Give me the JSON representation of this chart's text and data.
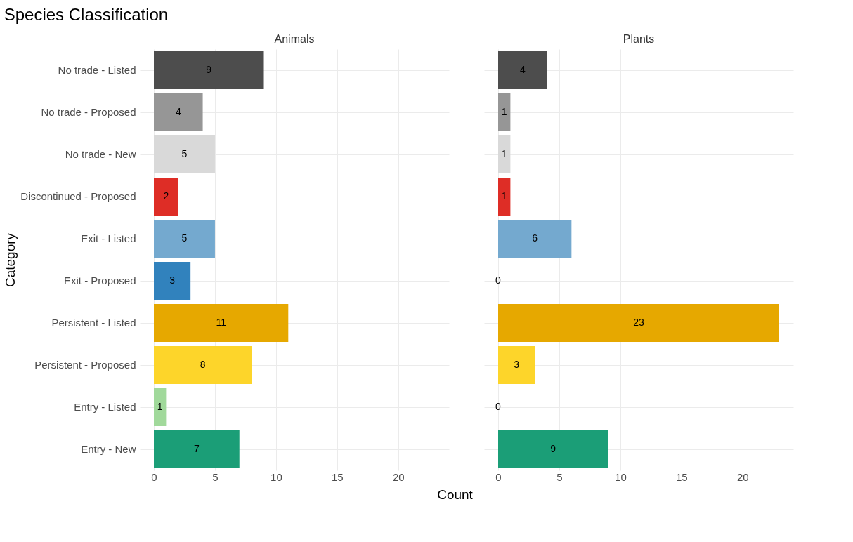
{
  "chart_data": [
    {
      "type": "bar",
      "orientation": "horizontal",
      "title": "Species Classification",
      "subtitle": "Animals",
      "xlabel": "Count",
      "ylabel": "Category",
      "categories": [
        "No trade - Listed",
        "No trade - Proposed",
        "No trade - New",
        "Discontinued - Proposed",
        "Exit - Listed",
        "Exit - Proposed",
        "Persistent - Listed",
        "Persistent - Proposed",
        "Entry - Listed",
        "Entry - New"
      ],
      "values": [
        9,
        4,
        5,
        2,
        5,
        3,
        11,
        8,
        1,
        7
      ],
      "colors": [
        "#4d4d4d",
        "#969696",
        "#d9d9d9",
        "#de2d26",
        "#74a9cf",
        "#3182bd",
        "#e6a800",
        "#fdd52a",
        "#a1d99b",
        "#1b9e77"
      ],
      "xlim": [
        -1.15,
        24.15
      ],
      "xticks": [
        0,
        5,
        10,
        15,
        20
      ],
      "grid": true,
      "data_labels": true
    },
    {
      "type": "bar",
      "orientation": "horizontal",
      "subtitle": "Plants",
      "categories": [
        "No trade - Listed",
        "No trade - Proposed",
        "No trade - New",
        "Discontinued - Proposed",
        "Exit - Listed",
        "Exit - Proposed",
        "Persistent - Listed",
        "Persistent - Proposed",
        "Entry - Listed",
        "Entry - New"
      ],
      "values": [
        4,
        1,
        1,
        1,
        6,
        0,
        23,
        3,
        0,
        9
      ],
      "colors": [
        "#4d4d4d",
        "#969696",
        "#d9d9d9",
        "#de2d26",
        "#74a9cf",
        "#3182bd",
        "#e6a800",
        "#fdd52a",
        "#a1d99b",
        "#1b9e77"
      ],
      "xlim": [
        -1.15,
        24.15
      ],
      "xticks": [
        0,
        5,
        10,
        15,
        20
      ],
      "grid": true,
      "data_labels": true,
      "tick_labels": "x"
    }
  ]
}
